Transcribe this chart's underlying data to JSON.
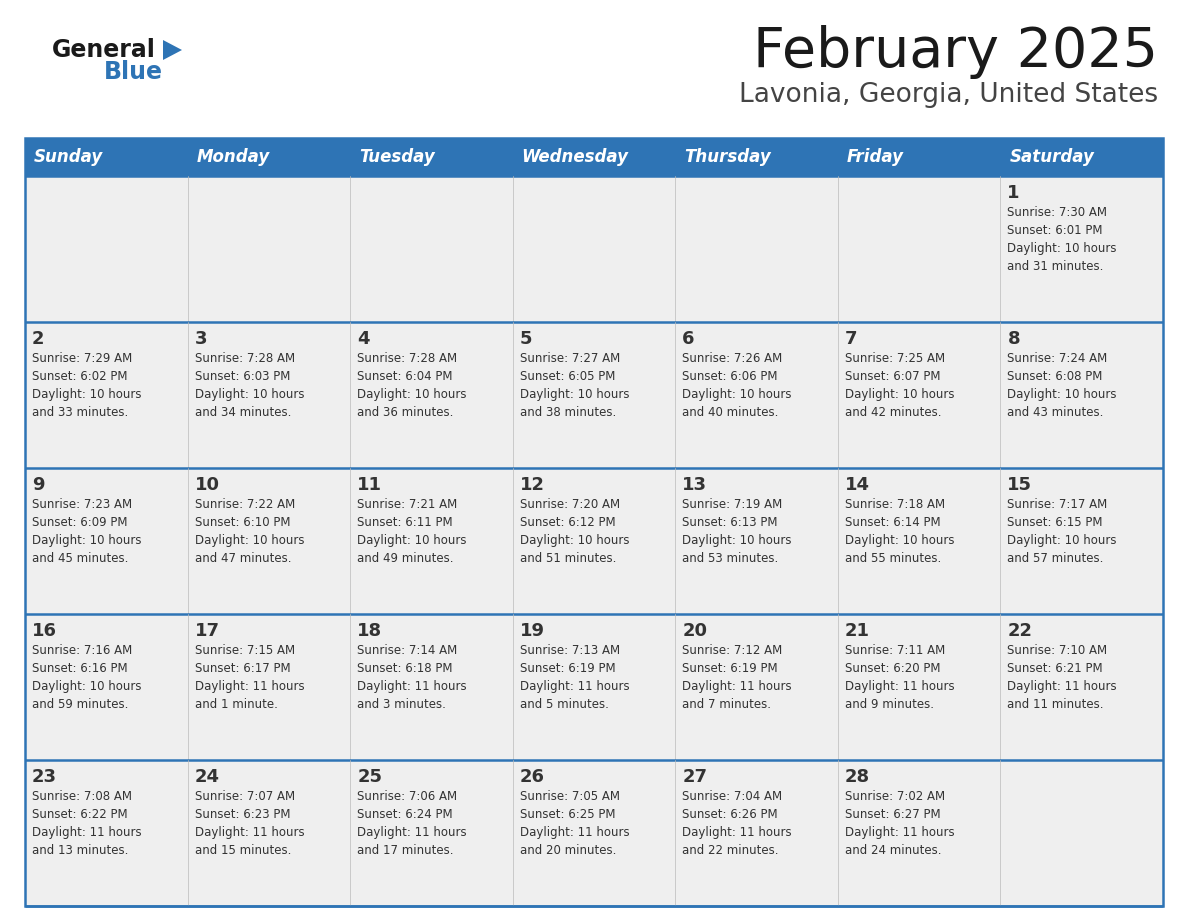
{
  "title": "February 2025",
  "subtitle": "Lavonia, Georgia, United States",
  "days_of_week": [
    "Sunday",
    "Monday",
    "Tuesday",
    "Wednesday",
    "Thursday",
    "Friday",
    "Saturday"
  ],
  "header_bg": "#2E74B5",
  "header_text": "#FFFFFF",
  "cell_bg": "#EFEFEF",
  "separator_color": "#2E74B5",
  "border_color": "#AAAAAA",
  "text_color": "#333333",
  "title_color": "#1A1A1A",
  "subtitle_color": "#444444",
  "logo_general_color": "#1A1A1A",
  "logo_blue_color": "#2E74B5",
  "calendar_data": [
    [
      {
        "day": null,
        "sunrise": null,
        "sunset": null,
        "daylight": null
      },
      {
        "day": null,
        "sunrise": null,
        "sunset": null,
        "daylight": null
      },
      {
        "day": null,
        "sunrise": null,
        "sunset": null,
        "daylight": null
      },
      {
        "day": null,
        "sunrise": null,
        "sunset": null,
        "daylight": null
      },
      {
        "day": null,
        "sunrise": null,
        "sunset": null,
        "daylight": null
      },
      {
        "day": null,
        "sunrise": null,
        "sunset": null,
        "daylight": null
      },
      {
        "day": 1,
        "sunrise": "7:30 AM",
        "sunset": "6:01 PM",
        "daylight": "10 hours\nand 31 minutes."
      }
    ],
    [
      {
        "day": 2,
        "sunrise": "7:29 AM",
        "sunset": "6:02 PM",
        "daylight": "10 hours\nand 33 minutes."
      },
      {
        "day": 3,
        "sunrise": "7:28 AM",
        "sunset": "6:03 PM",
        "daylight": "10 hours\nand 34 minutes."
      },
      {
        "day": 4,
        "sunrise": "7:28 AM",
        "sunset": "6:04 PM",
        "daylight": "10 hours\nand 36 minutes."
      },
      {
        "day": 5,
        "sunrise": "7:27 AM",
        "sunset": "6:05 PM",
        "daylight": "10 hours\nand 38 minutes."
      },
      {
        "day": 6,
        "sunrise": "7:26 AM",
        "sunset": "6:06 PM",
        "daylight": "10 hours\nand 40 minutes."
      },
      {
        "day": 7,
        "sunrise": "7:25 AM",
        "sunset": "6:07 PM",
        "daylight": "10 hours\nand 42 minutes."
      },
      {
        "day": 8,
        "sunrise": "7:24 AM",
        "sunset": "6:08 PM",
        "daylight": "10 hours\nand 43 minutes."
      }
    ],
    [
      {
        "day": 9,
        "sunrise": "7:23 AM",
        "sunset": "6:09 PM",
        "daylight": "10 hours\nand 45 minutes."
      },
      {
        "day": 10,
        "sunrise": "7:22 AM",
        "sunset": "6:10 PM",
        "daylight": "10 hours\nand 47 minutes."
      },
      {
        "day": 11,
        "sunrise": "7:21 AM",
        "sunset": "6:11 PM",
        "daylight": "10 hours\nand 49 minutes."
      },
      {
        "day": 12,
        "sunrise": "7:20 AM",
        "sunset": "6:12 PM",
        "daylight": "10 hours\nand 51 minutes."
      },
      {
        "day": 13,
        "sunrise": "7:19 AM",
        "sunset": "6:13 PM",
        "daylight": "10 hours\nand 53 minutes."
      },
      {
        "day": 14,
        "sunrise": "7:18 AM",
        "sunset": "6:14 PM",
        "daylight": "10 hours\nand 55 minutes."
      },
      {
        "day": 15,
        "sunrise": "7:17 AM",
        "sunset": "6:15 PM",
        "daylight": "10 hours\nand 57 minutes."
      }
    ],
    [
      {
        "day": 16,
        "sunrise": "7:16 AM",
        "sunset": "6:16 PM",
        "daylight": "10 hours\nand 59 minutes."
      },
      {
        "day": 17,
        "sunrise": "7:15 AM",
        "sunset": "6:17 PM",
        "daylight": "11 hours\nand 1 minute."
      },
      {
        "day": 18,
        "sunrise": "7:14 AM",
        "sunset": "6:18 PM",
        "daylight": "11 hours\nand 3 minutes."
      },
      {
        "day": 19,
        "sunrise": "7:13 AM",
        "sunset": "6:19 PM",
        "daylight": "11 hours\nand 5 minutes."
      },
      {
        "day": 20,
        "sunrise": "7:12 AM",
        "sunset": "6:19 PM",
        "daylight": "11 hours\nand 7 minutes."
      },
      {
        "day": 21,
        "sunrise": "7:11 AM",
        "sunset": "6:20 PM",
        "daylight": "11 hours\nand 9 minutes."
      },
      {
        "day": 22,
        "sunrise": "7:10 AM",
        "sunset": "6:21 PM",
        "daylight": "11 hours\nand 11 minutes."
      }
    ],
    [
      {
        "day": 23,
        "sunrise": "7:08 AM",
        "sunset": "6:22 PM",
        "daylight": "11 hours\nand 13 minutes."
      },
      {
        "day": 24,
        "sunrise": "7:07 AM",
        "sunset": "6:23 PM",
        "daylight": "11 hours\nand 15 minutes."
      },
      {
        "day": 25,
        "sunrise": "7:06 AM",
        "sunset": "6:24 PM",
        "daylight": "11 hours\nand 17 minutes."
      },
      {
        "day": 26,
        "sunrise": "7:05 AM",
        "sunset": "6:25 PM",
        "daylight": "11 hours\nand 20 minutes."
      },
      {
        "day": 27,
        "sunrise": "7:04 AM",
        "sunset": "6:26 PM",
        "daylight": "11 hours\nand 22 minutes."
      },
      {
        "day": 28,
        "sunrise": "7:02 AM",
        "sunset": "6:27 PM",
        "daylight": "11 hours\nand 24 minutes."
      },
      {
        "day": null,
        "sunrise": null,
        "sunset": null,
        "daylight": null
      }
    ]
  ]
}
